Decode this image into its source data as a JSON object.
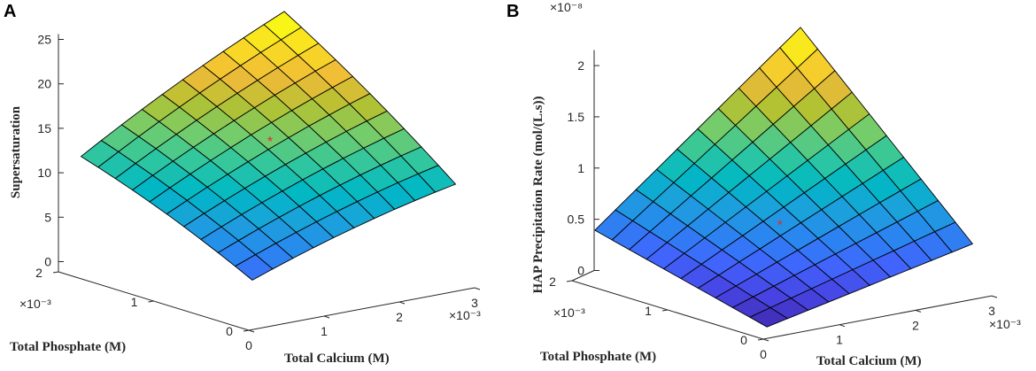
{
  "chart_data": [
    {
      "panel_label": "A",
      "type": "surface",
      "xlabel": "Total Calcium (M)",
      "ylabel": "Total Phosphate (M)",
      "zlabel": "Supersaturation",
      "x_ticks": [
        "0",
        "1",
        "2",
        "3"
      ],
      "x_exponent": "×10⁻³",
      "y_ticks": [
        "0",
        "1",
        "2"
      ],
      "y_exponent": "×10⁻³",
      "z_ticks": [
        "0",
        "5",
        "10",
        "15",
        "20",
        "25"
      ],
      "z_exponent": "",
      "x_range": [
        0.0003,
        0.003
      ],
      "y_range": [
        0.0002,
        0.002
      ],
      "z_range": [
        0,
        25
      ],
      "grid_cells": [
        10,
        10
      ],
      "z_corners": {
        "x_min_y_min": 4.5,
        "x_max_y_min": 11.0,
        "x_min_y_max": 12.5,
        "x_max_y_max": 24.5
      },
      "marker": {
        "x": 0.0018,
        "y": 0.0012,
        "z": 14.5,
        "symbol": "*"
      }
    },
    {
      "panel_label": "B",
      "type": "surface",
      "xlabel": "Total Calcium (M)",
      "ylabel": "Total Phosphate (M)",
      "zlabel": "HAP Precipitation Rate (mol/(L.s))",
      "x_ticks": [
        "0",
        "1",
        "2",
        "3"
      ],
      "x_exponent": "×10⁻³",
      "y_ticks": [
        "0",
        "1",
        "2"
      ],
      "y_exponent": "×10⁻³",
      "z_ticks": [
        "0",
        "0.5",
        "1",
        "1.5",
        "2"
      ],
      "z_exponent": "×10⁻⁸",
      "x_range": [
        0.0003,
        0.003
      ],
      "y_range": [
        0.0002,
        0.002
      ],
      "z_range": [
        0,
        2.1
      ],
      "grid_cells": [
        10,
        10
      ],
      "z_corners": {
        "x_min_y_min": 0.02,
        "x_max_y_min": 0.45,
        "x_min_y_max": 0.45,
        "x_max_y_max": 2.05
      },
      "marker": {
        "x": 0.0016,
        "y": 0.0011,
        "z": 0.58,
        "symbol": "*"
      }
    }
  ]
}
